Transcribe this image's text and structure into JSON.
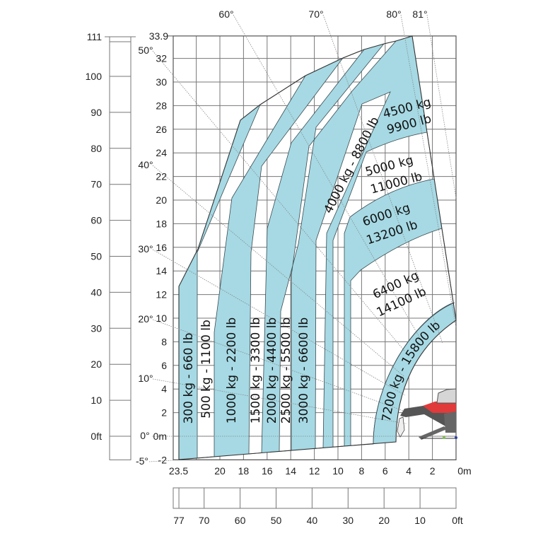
{
  "colors": {
    "band_fill": "#a6d9e4",
    "outline": "#333333",
    "grid": "#777777",
    "machine_red": "#e03a3a",
    "machine_gray": "#555555"
  },
  "meter_axis_left": {
    "top_label": "33.9",
    "labels": [
      "32",
      "30",
      "28",
      "26",
      "24",
      "22",
      "20",
      "18",
      "16",
      "14",
      "12",
      "10",
      "8",
      "6",
      "4",
      "2",
      "0m",
      "-2"
    ]
  },
  "feet_axis_left": {
    "labels": [
      "111",
      "100",
      "90",
      "80",
      "70",
      "60",
      "50",
      "40",
      "30",
      "20",
      "10",
      "0ft"
    ]
  },
  "meter_axis_bottom": {
    "labels": [
      "23.5",
      "20",
      "18",
      "16",
      "14",
      "12",
      "10",
      "8",
      "6",
      "4",
      "2",
      "0m"
    ]
  },
  "feet_axis_bottom": {
    "labels": [
      "77",
      "70",
      "60",
      "50",
      "40",
      "30",
      "20",
      "10",
      "0ft"
    ]
  },
  "angles": [
    "60°",
    "70°",
    "80°",
    "81°",
    "50°",
    "40°",
    "30°",
    "20°",
    "10°",
    "0°",
    "-5°"
  ],
  "loads": {
    "l300": "300 kg - 660 lb",
    "l500": "500 kg - 1100 lb",
    "l1000": "1000 kg - 2200 lb",
    "l1500": "1500 kg - 3300 lb",
    "l2000": "2000 kg - 4400 lb",
    "l2500": "2500 kg - 5500 lb",
    "l3000": "3000 kg - 6600 lb",
    "l4000": "4000 kg - 8800 lb",
    "l4500_kg": "4500 kg",
    "l4500_lb": "9900 lb",
    "l5000_kg": "5000 kg",
    "l5000_lb": "11000 lb",
    "l6000_kg": "6000 kg",
    "l6000_lb": "13200 lb",
    "l6400_kg": "6400 kg",
    "l6400_lb": "14100 lb",
    "l7200": "7200 kg - 15800 lb"
  }
}
